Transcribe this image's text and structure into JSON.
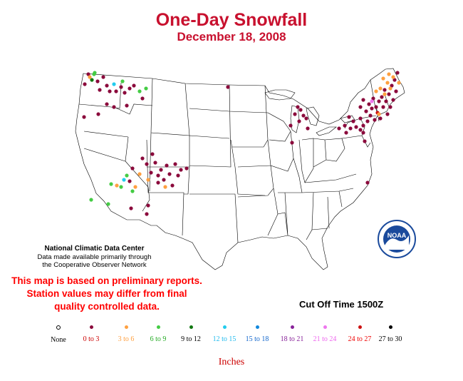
{
  "title": "One-Day Snowfall",
  "subtitle": "December 18, 2008",
  "credit": {
    "line1": "National Climatic Data Center",
    "line2": "Data made available primarily through",
    "line3": "the Cooperative Observer Network"
  },
  "disclaimer": {
    "line1": "This map is based on preliminary reports.",
    "line2": "Station values may differ from final",
    "line3": "quality controlled data."
  },
  "cutoff": "Cut Off Time 1500Z",
  "units": "Inches",
  "logo": {
    "name": "noaa-logo",
    "text": "NOAA"
  },
  "legend": [
    {
      "label": "None",
      "color": "#000000",
      "hollow": true,
      "text_color": "#000000"
    },
    {
      "label": "0 to 3",
      "color": "#8b0a3c",
      "text_color": "#cc0000"
    },
    {
      "label": "3 to 6",
      "color": "#ffa040",
      "text_color": "#ffa040"
    },
    {
      "label": "6 to 9",
      "color": "#44cc44",
      "text_color": "#22aa22"
    },
    {
      "label": "9 to 12",
      "color": "#117711",
      "text_color": "#000000"
    },
    {
      "label": "12 to 15",
      "color": "#22ccee",
      "text_color": "#22bbee"
    },
    {
      "label": "15 to 18",
      "color": "#1188dd",
      "text_color": "#1166cc"
    },
    {
      "label": "18 to 21",
      "color": "#882299",
      "text_color": "#882299"
    },
    {
      "label": "21 to 24",
      "color": "#ee77ee",
      "text_color": "#ee66ee"
    },
    {
      "label": "24 to 27",
      "color": "#cc1111",
      "text_color": "#ee0000"
    },
    {
      "label": "27 to 30",
      "color": "#000000",
      "text_color": "#000000"
    }
  ]
}
